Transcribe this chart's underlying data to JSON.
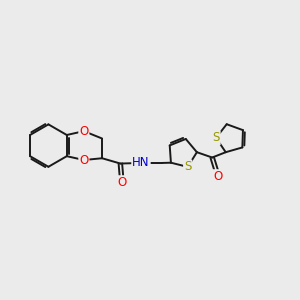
{
  "background_color": "#ebebeb",
  "bond_color": "#1a1a1a",
  "atom_colors": {
    "O": "#ff0000",
    "N": "#0000cd",
    "S": "#999900",
    "C": "#1a1a1a",
    "H": "#1a1a1a"
  },
  "figsize": [
    3.0,
    3.0
  ],
  "dpi": 100,
  "lw": 1.4,
  "fs": 8.5
}
